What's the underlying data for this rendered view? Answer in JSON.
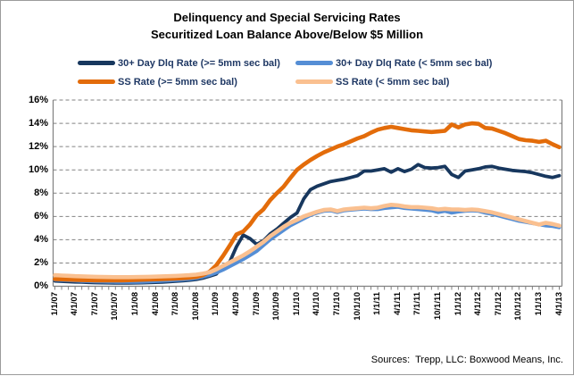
{
  "title": {
    "line1": "Delinquency and Special Servicing Rates",
    "line2": "Securitized Loan Balance Above/Below $5 Million"
  },
  "source": "Sources:  Trepp, LLC: Boxwood Means, Inc.",
  "colors": {
    "dlq_ge_5mm": "#17375E",
    "dlq_lt_5mm": "#558ED5",
    "ss_ge_5mm": "#E36C0A",
    "ss_lt_5mm": "#FAC090",
    "gridline": "#828282",
    "axis": "#808080"
  },
  "chart_data": {
    "type": "line",
    "title": "Delinquency and Special Servicing Rates — Securitized Loan Balance Above/Below $5 Million",
    "ylabel": "",
    "xlabel": "",
    "ylim": [
      0,
      16
    ],
    "grid": "horizontal-dashed",
    "legend_position": "top",
    "y_ticks": [
      "0%",
      "2%",
      "4%",
      "6%",
      "8%",
      "10%",
      "12%",
      "14%",
      "16%"
    ],
    "x_labels": [
      "1/1/07",
      "4/1/07",
      "7/1/07",
      "10/1/07",
      "1/1/08",
      "4/1/08",
      "7/1/08",
      "10/1/08",
      "1/1/09",
      "4/1/09",
      "7/1/09",
      "10/1/09",
      "1/1/10",
      "4/1/10",
      "7/1/10",
      "10/1/10",
      "1/1/11",
      "4/1/11",
      "7/1/11",
      "10/1/11",
      "1/1/12",
      "4/1/12",
      "7/1/12",
      "10/1/12",
      "1/1/13",
      "4/1/13"
    ],
    "x_frequency": "monthly",
    "points_per_series": 76,
    "series": [
      {
        "name": "30+ Day Dlq Rate (>= 5mm sec bal)",
        "color": "#17375E",
        "values": [
          0.45,
          0.42,
          0.4,
          0.37,
          0.35,
          0.33,
          0.31,
          0.3,
          0.29,
          0.28,
          0.28,
          0.28,
          0.29,
          0.3,
          0.32,
          0.34,
          0.36,
          0.39,
          0.43,
          0.47,
          0.52,
          0.58,
          0.7,
          0.87,
          1.05,
          1.7,
          2.1,
          3.4,
          4.4,
          4.1,
          3.6,
          3.9,
          4.5,
          4.9,
          5.4,
          5.9,
          6.3,
          7.5,
          8.3,
          8.6,
          8.8,
          9.0,
          9.1,
          9.2,
          9.35,
          9.5,
          9.9,
          9.9,
          10.0,
          10.1,
          9.8,
          10.1,
          9.85,
          10.05,
          10.45,
          10.2,
          10.15,
          10.2,
          10.3,
          9.6,
          9.35,
          9.9,
          10.0,
          10.1,
          10.25,
          10.3,
          10.15,
          10.05,
          9.95,
          9.9,
          9.85,
          9.75,
          9.6,
          9.45,
          9.35,
          9.5
        ]
      },
      {
        "name": "30+ Day Dlq Rate (< 5mm sec bal)",
        "color": "#558ED5",
        "values": [
          0.55,
          0.52,
          0.5,
          0.47,
          0.44,
          0.42,
          0.4,
          0.38,
          0.37,
          0.36,
          0.35,
          0.35,
          0.36,
          0.37,
          0.39,
          0.42,
          0.45,
          0.48,
          0.52,
          0.56,
          0.61,
          0.68,
          0.8,
          0.95,
          1.15,
          1.4,
          1.7,
          2.0,
          2.3,
          2.65,
          3.0,
          3.5,
          4.0,
          4.4,
          4.8,
          5.2,
          5.5,
          5.8,
          6.1,
          6.3,
          6.45,
          6.5,
          6.35,
          6.5,
          6.55,
          6.6,
          6.65,
          6.6,
          6.6,
          6.7,
          6.75,
          6.8,
          6.7,
          6.65,
          6.6,
          6.55,
          6.5,
          6.35,
          6.45,
          6.3,
          6.4,
          6.45,
          6.5,
          6.45,
          6.3,
          6.2,
          6.05,
          5.9,
          5.75,
          5.6,
          5.5,
          5.4,
          5.3,
          5.2,
          5.15,
          5.05
        ]
      },
      {
        "name": "SS Rate (>= 5mm sec bal)",
        "color": "#E36C0A",
        "values": [
          0.62,
          0.6,
          0.57,
          0.55,
          0.53,
          0.52,
          0.5,
          0.5,
          0.5,
          0.5,
          0.51,
          0.52,
          0.54,
          0.56,
          0.58,
          0.6,
          0.62,
          0.64,
          0.67,
          0.7,
          0.74,
          0.8,
          0.95,
          1.25,
          1.8,
          2.6,
          3.5,
          4.45,
          4.7,
          5.3,
          6.1,
          6.6,
          7.4,
          8.0,
          8.55,
          9.3,
          10.0,
          10.45,
          10.85,
          11.2,
          11.5,
          11.75,
          12.0,
          12.2,
          12.45,
          12.7,
          12.9,
          13.2,
          13.45,
          13.6,
          13.7,
          13.6,
          13.5,
          13.4,
          13.35,
          13.3,
          13.25,
          13.3,
          13.35,
          13.9,
          13.65,
          13.9,
          14.0,
          13.95,
          13.6,
          13.55,
          13.35,
          13.15,
          12.9,
          12.65,
          12.55,
          12.5,
          12.4,
          12.5,
          12.2,
          11.95
        ]
      },
      {
        "name": "SS Rate (< 5mm sec bal)",
        "color": "#FAC090",
        "values": [
          0.95,
          0.92,
          0.9,
          0.87,
          0.85,
          0.83,
          0.81,
          0.8,
          0.79,
          0.78,
          0.78,
          0.78,
          0.79,
          0.8,
          0.81,
          0.83,
          0.85,
          0.87,
          0.89,
          0.92,
          0.95,
          1.0,
          1.08,
          1.2,
          1.45,
          1.75,
          2.05,
          2.35,
          2.65,
          3.0,
          3.4,
          3.8,
          4.3,
          4.7,
          5.1,
          5.45,
          5.7,
          6.0,
          6.2,
          6.4,
          6.55,
          6.6,
          6.45,
          6.6,
          6.65,
          6.7,
          6.75,
          6.7,
          6.75,
          6.9,
          7.0,
          6.95,
          6.85,
          6.8,
          6.8,
          6.75,
          6.7,
          6.6,
          6.65,
          6.6,
          6.6,
          6.55,
          6.6,
          6.55,
          6.45,
          6.35,
          6.2,
          6.05,
          5.9,
          5.75,
          5.6,
          5.45,
          5.3,
          5.45,
          5.35,
          5.2
        ]
      }
    ]
  }
}
